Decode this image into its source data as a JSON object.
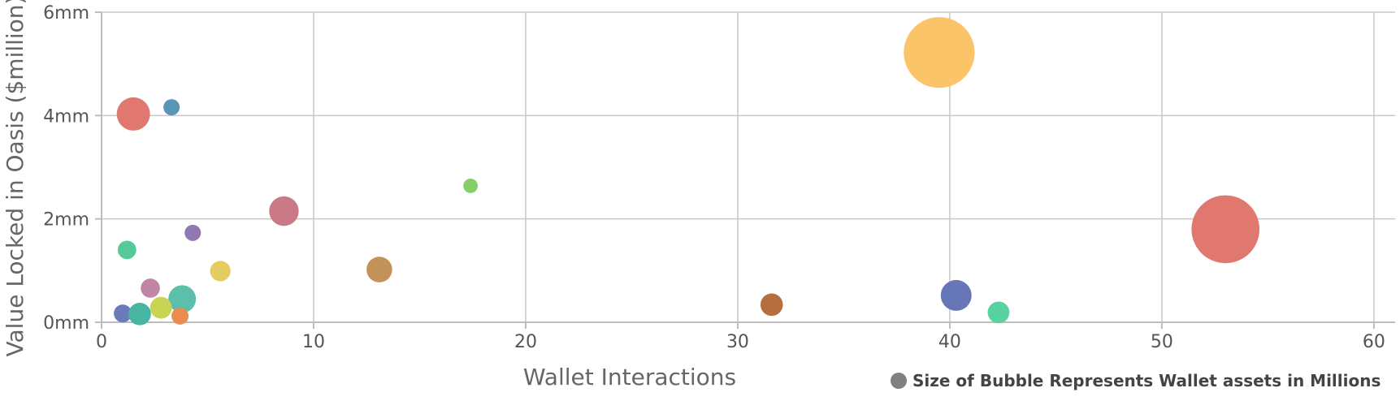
{
  "chart_data": {
    "type": "scatter",
    "xlabel": "Wallet Interactions",
    "ylabel": "Value Locked in Oasis ($million)",
    "xlim": [
      0,
      61
    ],
    "ylim": [
      0,
      6
    ],
    "x_ticks": [
      0,
      10,
      20,
      30,
      40,
      50,
      60
    ],
    "x_tick_labels": [
      "0",
      "10",
      "20",
      "30",
      "40",
      "50",
      "60"
    ],
    "y_ticks": [
      0,
      2,
      4,
      6
    ],
    "y_tick_labels": [
      "0mm",
      "2mm",
      "4mm",
      "6mm"
    ],
    "grid": true,
    "legend": {
      "label": "Size of Bubble Represents Wallet assets in Millions",
      "color": "#808080",
      "placement": "bottom-right"
    },
    "points": [
      {
        "x": 1.5,
        "y": 4.03,
        "size": 4.2,
        "color": "#e07870"
      },
      {
        "x": 3.3,
        "y": 4.16,
        "size": 1.0,
        "color": "#5a95b5"
      },
      {
        "x": 8.6,
        "y": 2.15,
        "size": 3.3,
        "color": "#c97a86"
      },
      {
        "x": 4.3,
        "y": 1.73,
        "size": 1.0,
        "color": "#9079b0"
      },
      {
        "x": 1.2,
        "y": 1.4,
        "size": 1.3,
        "color": "#55c99a"
      },
      {
        "x": 5.6,
        "y": 0.99,
        "size": 1.6,
        "color": "#e5cc60"
      },
      {
        "x": 2.3,
        "y": 0.66,
        "size": 1.4,
        "color": "#c285a6"
      },
      {
        "x": 3.8,
        "y": 0.45,
        "size": 2.9,
        "color": "#5bbfaa"
      },
      {
        "x": 2.8,
        "y": 0.28,
        "size": 1.8,
        "color": "#c9d452"
      },
      {
        "x": 1.0,
        "y": 0.17,
        "size": 1.2,
        "color": "#6b7ab8"
      },
      {
        "x": 1.8,
        "y": 0.16,
        "size": 1.9,
        "color": "#48b5a2"
      },
      {
        "x": 3.7,
        "y": 0.12,
        "size": 1.1,
        "color": "#ea8c50"
      },
      {
        "x": 13.1,
        "y": 1.02,
        "size": 2.5,
        "color": "#c29258"
      },
      {
        "x": 17.4,
        "y": 2.64,
        "size": 0.8,
        "color": "#84cf6a"
      },
      {
        "x": 31.6,
        "y": 0.34,
        "size": 1.9,
        "color": "#b56e40"
      },
      {
        "x": 39.5,
        "y": 5.22,
        "size": 19.0,
        "color": "#fcc468"
      },
      {
        "x": 40.3,
        "y": 0.52,
        "size": 3.6,
        "color": "#6676b6"
      },
      {
        "x": 42.3,
        "y": 0.19,
        "size": 1.8,
        "color": "#57d2a0"
      },
      {
        "x": 53.0,
        "y": 1.8,
        "size": 17.5,
        "color": "#e07870"
      }
    ]
  }
}
